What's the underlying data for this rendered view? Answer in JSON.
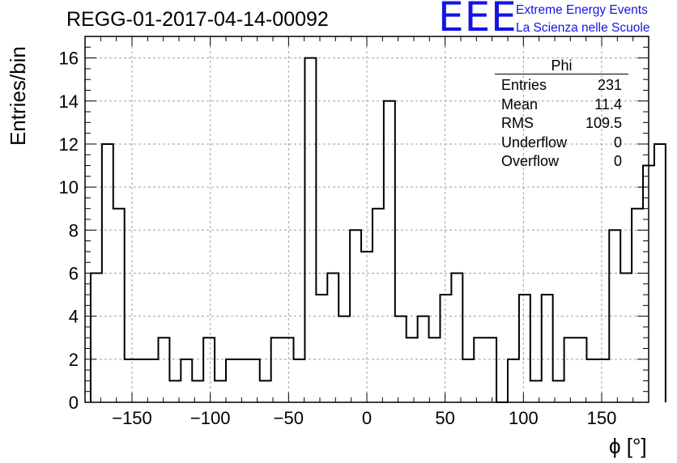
{
  "title": "REGG-01-2017-04-14-00092",
  "logo": {
    "mark": "EEE",
    "line1": "Extreme Energy Events",
    "line2": "La Scienza nelle Scuole",
    "color": "#1414e6"
  },
  "stats_box": {
    "title": "Phi",
    "rows": [
      {
        "label": "Entries",
        "value": "231"
      },
      {
        "label": "Mean",
        "value": "11.4"
      },
      {
        "label": "RMS",
        "value": "109.5"
      },
      {
        "label": "Underflow",
        "value": "0"
      },
      {
        "label": "Overflow",
        "value": "0"
      }
    ]
  },
  "chart_data": {
    "type": "bar",
    "histogram": true,
    "title": "REGG-01-2017-04-14-00092",
    "xlabel": "ϕ [°]",
    "ylabel": "Entries/bin",
    "xlim": [
      -180,
      180
    ],
    "ylim": [
      0,
      17
    ],
    "grid": true,
    "bin_width": 7.2,
    "bin_edges_start": -176.4,
    "values": [
      6,
      12,
      9,
      2,
      2,
      2,
      3,
      1,
      2,
      1,
      3,
      1,
      2,
      2,
      2,
      1,
      3,
      3,
      2,
      16,
      5,
      6,
      4,
      8,
      7,
      9,
      14,
      4,
      3,
      4,
      3,
      5,
      6,
      2,
      3,
      3,
      0,
      2,
      5,
      1,
      5,
      1,
      3,
      3,
      2,
      2,
      8,
      6,
      9,
      11,
      12
    ],
    "xticks": [
      "−150",
      "−100",
      "−50",
      "0",
      "50",
      "100",
      "150"
    ],
    "xtick_values": [
      -150,
      -100,
      -50,
      0,
      50,
      100,
      150
    ],
    "yticks": [
      "0",
      "2",
      "4",
      "6",
      "8",
      "10",
      "12",
      "14",
      "16"
    ],
    "ytick_values": [
      0,
      2,
      4,
      6,
      8,
      10,
      12,
      14,
      16
    ],
    "line_color": "#000000",
    "grid_color": "#a0a0a0"
  }
}
